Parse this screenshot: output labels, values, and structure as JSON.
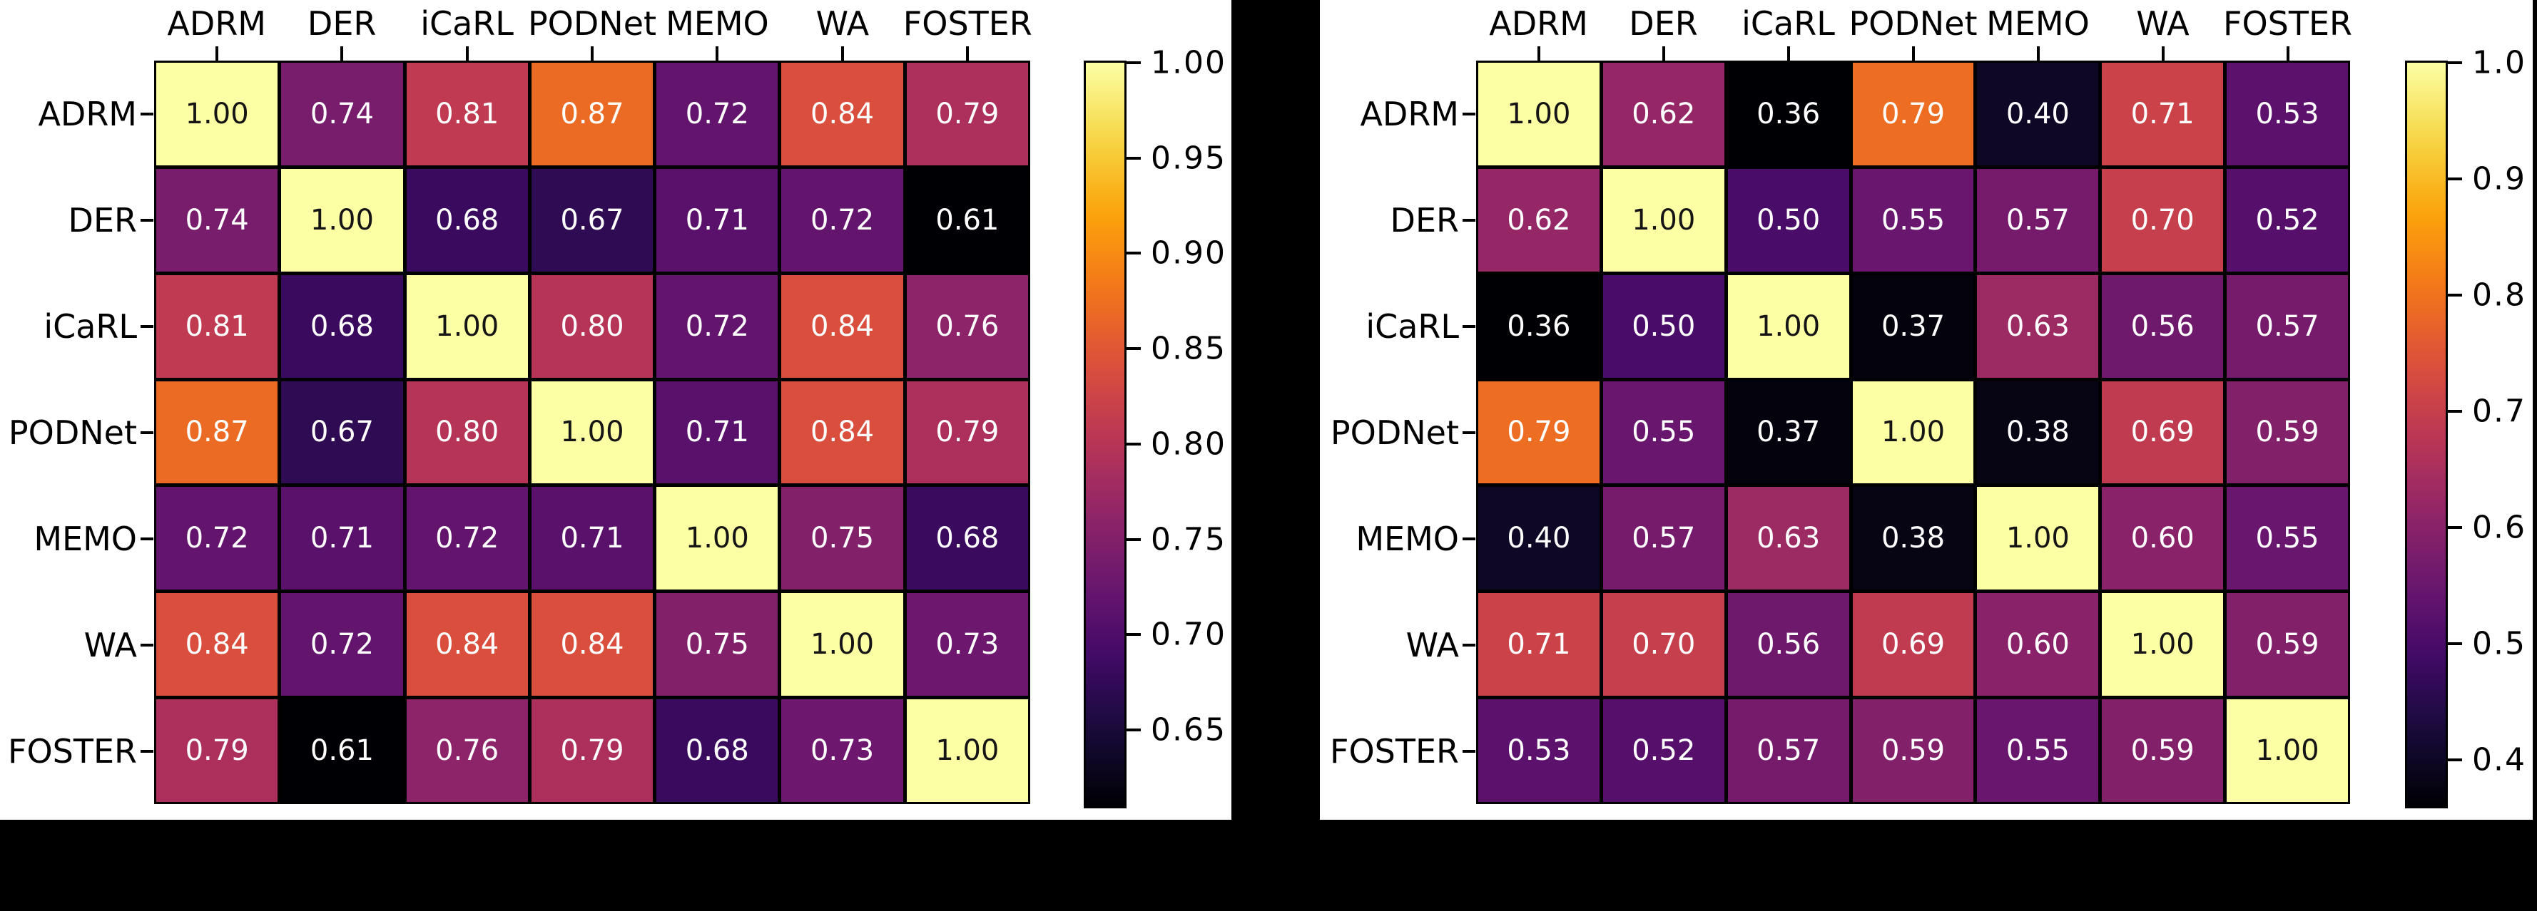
{
  "figure": {
    "canvas_bg": "#000000",
    "panel_bg": "#ffffff",
    "line_color": "#000000",
    "label_color": "#000000",
    "cell_text_light": "#ffffff",
    "cell_text_dark": "#151515"
  },
  "chart_data": [
    {
      "type": "heatmap",
      "position": "left",
      "title": "",
      "colormap": "inferno",
      "grid": "black cell borders",
      "legend_position": "right-colorbar",
      "x_labels": [
        "ADRM",
        "DER",
        "iCaRL",
        "PODNet",
        "MEMO",
        "WA",
        "FOSTER"
      ],
      "y_labels": [
        "ADRM",
        "DER",
        "iCaRL",
        "PODNet",
        "MEMO",
        "WA",
        "FOSTER"
      ],
      "matrix": [
        [
          1.0,
          0.74,
          0.81,
          0.87,
          0.72,
          0.84,
          0.79
        ],
        [
          0.74,
          1.0,
          0.68,
          0.67,
          0.71,
          0.72,
          0.61
        ],
        [
          0.81,
          0.68,
          1.0,
          0.8,
          0.72,
          0.84,
          0.76
        ],
        [
          0.87,
          0.67,
          0.8,
          1.0,
          0.71,
          0.84,
          0.79
        ],
        [
          0.72,
          0.71,
          0.72,
          0.71,
          1.0,
          0.75,
          0.68
        ],
        [
          0.84,
          0.72,
          0.84,
          0.84,
          0.75,
          1.0,
          0.73
        ],
        [
          0.79,
          0.61,
          0.76,
          0.79,
          0.68,
          0.73,
          1.0
        ]
      ],
      "vmin": 0.61,
      "vmax": 1.0,
      "annotation_decimals": 2,
      "colorbar": {
        "tick_labels": [
          "1.00",
          "0.95",
          "0.90",
          "0.85",
          "0.80",
          "0.75",
          "0.70",
          "0.65"
        ],
        "tick_values": [
          1.0,
          0.95,
          0.9,
          0.85,
          0.8,
          0.75,
          0.7,
          0.65
        ]
      }
    },
    {
      "type": "heatmap",
      "position": "right",
      "title": "",
      "colormap": "inferno",
      "grid": "black cell borders",
      "legend_position": "right-colorbar",
      "x_labels": [
        "ADRM",
        "DER",
        "iCaRL",
        "PODNet",
        "MEMO",
        "WA",
        "FOSTER"
      ],
      "y_labels": [
        "ADRM",
        "DER",
        "iCaRL",
        "PODNet",
        "MEMO",
        "WA",
        "FOSTER"
      ],
      "matrix": [
        [
          1.0,
          0.62,
          0.36,
          0.79,
          0.4,
          0.71,
          0.53
        ],
        [
          0.62,
          1.0,
          0.5,
          0.55,
          0.57,
          0.7,
          0.52
        ],
        [
          0.36,
          0.5,
          1.0,
          0.37,
          0.63,
          0.56,
          0.57
        ],
        [
          0.79,
          0.55,
          0.37,
          1.0,
          0.38,
          0.69,
          0.59
        ],
        [
          0.4,
          0.57,
          0.63,
          0.38,
          1.0,
          0.6,
          0.55
        ],
        [
          0.71,
          0.7,
          0.56,
          0.69,
          0.6,
          1.0,
          0.59
        ],
        [
          0.53,
          0.52,
          0.57,
          0.59,
          0.55,
          0.59,
          1.0
        ]
      ],
      "vmin": 0.36,
      "vmax": 1.0,
      "annotation_decimals": 2,
      "colorbar": {
        "tick_labels": [
          "1.0",
          "0.9",
          "0.8",
          "0.7",
          "0.6",
          "0.5",
          "0.4"
        ],
        "tick_values": [
          1.0,
          0.9,
          0.8,
          0.7,
          0.6,
          0.5,
          0.4
        ]
      }
    }
  ]
}
